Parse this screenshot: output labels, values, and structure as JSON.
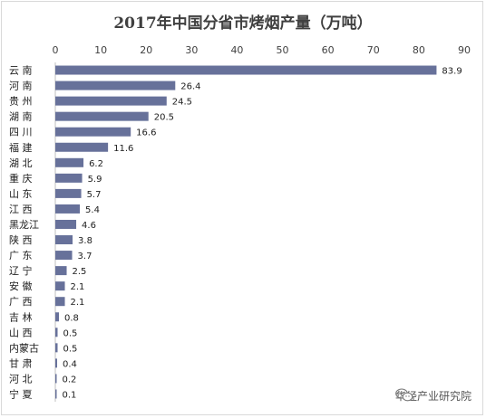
{
  "chart_data": {
    "type": "bar",
    "orientation": "horizontal",
    "title": "2017年中国分省市烤烟产量（万吨）",
    "xlabel": "",
    "ylabel": "",
    "xlim": [
      0,
      90
    ],
    "ticks": [
      0,
      10,
      20,
      30,
      40,
      50,
      60,
      70,
      80,
      90
    ],
    "axis_position": "top",
    "grid": false,
    "bar_color": "#67719a",
    "categories": [
      "云 南",
      "河 南",
      "贵 州",
      "湖 南",
      "四 川",
      "福 建",
      "湖 北",
      "重 庆",
      "山 东",
      "江 西",
      "黑龙江",
      "陕 西",
      "广 东",
      "辽 宁",
      "安 徽",
      "广 西",
      "吉 林",
      "山 西",
      "内蒙古",
      "甘 肃",
      "河 北",
      "宁 夏"
    ],
    "values": [
      83.9,
      26.4,
      24.5,
      20.5,
      16.6,
      11.6,
      6.2,
      5.9,
      5.7,
      5.4,
      4.6,
      3.8,
      3.7,
      2.5,
      2.1,
      2.1,
      0.8,
      0.5,
      0.5,
      0.4,
      0.2,
      0.1
    ]
  },
  "watermark": {
    "text": "华经产业研究院",
    "icon": "wechat-icon"
  }
}
